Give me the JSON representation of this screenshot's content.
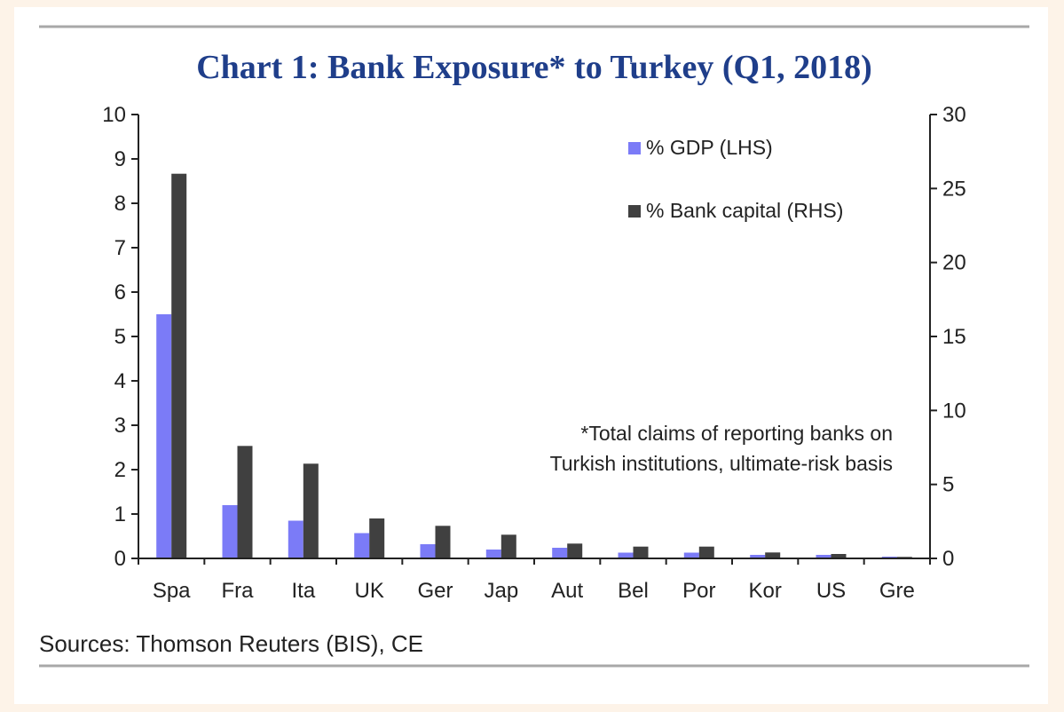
{
  "chart_data": {
    "type": "bar",
    "title": "Chart 1: Bank Exposure* to Turkey (Q1, 2018)",
    "categories": [
      "Spa",
      "Fra",
      "Ita",
      "UK",
      "Ger",
      "Jap",
      "Aut",
      "Bel",
      "Por",
      "Kor",
      "US",
      "Gre"
    ],
    "series": [
      {
        "name": "% GDP (LHS)",
        "axis": "left",
        "color": "#7b7bf7",
        "values": [
          5.5,
          1.2,
          0.85,
          0.57,
          0.32,
          0.2,
          0.24,
          0.13,
          0.13,
          0.08,
          0.08,
          0.04
        ]
      },
      {
        "name": "% Bank capital (RHS)",
        "axis": "right",
        "color": "#404040",
        "values": [
          26.0,
          7.6,
          6.4,
          2.7,
          2.2,
          1.6,
          1.0,
          0.8,
          0.8,
          0.4,
          0.3,
          0.1
        ]
      }
    ],
    "ylim_left": [
      0,
      10
    ],
    "yticks_left": [
      "0",
      "1",
      "2",
      "3",
      "4",
      "5",
      "6",
      "7",
      "8",
      "9",
      "10"
    ],
    "ylim_right": [
      0,
      30
    ],
    "yticks_right": [
      "0",
      "5",
      "10",
      "15",
      "20",
      "25",
      "30"
    ],
    "legend_position": "top-right",
    "grid": false,
    "annotation": [
      "*Total claims of reporting banks on",
      "Turkish institutions, ultimate-risk basis"
    ],
    "source": "Sources: Thomson Reuters (BIS), CE"
  }
}
